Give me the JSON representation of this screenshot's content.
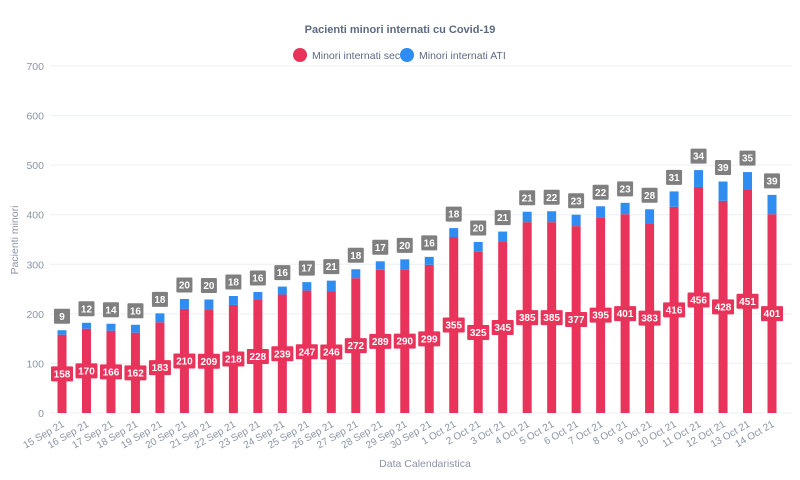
{
  "colors": {
    "sectii": "#e8335a",
    "ati": "#2f8cf0",
    "ati_label_bg": "#7f7f7f",
    "sectii_label_bg": "#e8335a"
  },
  "chart_data": {
    "type": "bar",
    "stacked": true,
    "title": "Pacienti minori internati cu Covid-19",
    "xlabel": "Data Calendaristica",
    "ylabel": "Pacienti minori",
    "ylim": [
      0,
      700
    ],
    "yticks": [
      0,
      100,
      200,
      300,
      400,
      500,
      600,
      700
    ],
    "grid": true,
    "legend_position": "top",
    "categories": [
      "15 Sep 21",
      "16 Sep 21",
      "17 Sep 21",
      "18 Sep 21",
      "19 Sep 21",
      "20 Sep 21",
      "21 Sep 21",
      "22 Sep 21",
      "23 Sep 21",
      "24 Sep 21",
      "25 Sep 21",
      "26 Sep 21",
      "27 Sep 21",
      "28 Sep 21",
      "29 Sep 21",
      "30 Sep 21",
      "1 Oct 21",
      "2 Oct 21",
      "3 Oct 21",
      "4 Oct 21",
      "5 Oct 21",
      "6 Oct 21",
      "7 Oct 21",
      "8 Oct 21",
      "9 Oct 21",
      "10 Oct 21",
      "11 Oct 21",
      "12 Oct 21",
      "13 Oct 21",
      "14 Oct 21"
    ],
    "series": [
      {
        "name": "Minori internati sectii",
        "color": "#e8335a",
        "values": [
          158,
          170,
          166,
          162,
          183,
          210,
          209,
          218,
          228,
          239,
          247,
          246,
          272,
          289,
          290,
          299,
          355,
          325,
          345,
          385,
          385,
          377,
          395,
          401,
          383,
          416,
          456,
          428,
          451,
          401
        ]
      },
      {
        "name": "Minori internati ATI",
        "color": "#2f8cf0",
        "values": [
          9,
          12,
          14,
          16,
          18,
          20,
          20,
          18,
          16,
          16,
          17,
          21,
          18,
          17,
          20,
          16,
          18,
          20,
          21,
          21,
          22,
          23,
          22,
          23,
          28,
          31,
          34,
          39,
          35,
          39
        ]
      }
    ]
  }
}
